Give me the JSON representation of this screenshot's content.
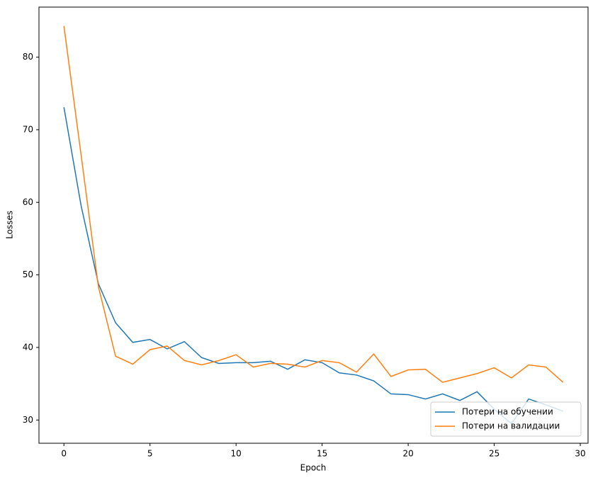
{
  "chart_data": {
    "type": "line",
    "x_label": "Epoch",
    "y_label": "Losses",
    "x": [
      0,
      1,
      2,
      3,
      4,
      5,
      6,
      7,
      8,
      9,
      10,
      11,
      12,
      13,
      14,
      15,
      16,
      17,
      18,
      19,
      20,
      21,
      22,
      23,
      24,
      25,
      26,
      27,
      28,
      29
    ],
    "series": [
      {
        "name": "Потери на обучении",
        "color": "#1f77b4",
        "values": [
          73.1,
          59.5,
          48.8,
          43.4,
          40.7,
          41.1,
          39.8,
          40.8,
          38.6,
          37.8,
          37.9,
          37.9,
          38.1,
          37.0,
          38.3,
          37.9,
          36.5,
          36.2,
          35.4,
          33.6,
          33.5,
          32.9,
          33.6,
          32.7,
          33.9,
          31.5,
          29.5,
          32.9,
          32.1,
          31.2
        ]
      },
      {
        "name": "Потери на валидации",
        "color": "#ff7f0e",
        "values": [
          84.3,
          66.5,
          48.4,
          38.8,
          37.7,
          39.7,
          40.2,
          38.2,
          37.6,
          38.2,
          39.0,
          37.3,
          37.8,
          37.7,
          37.3,
          38.2,
          37.9,
          36.6,
          39.1,
          36.0,
          36.9,
          37.0,
          35.2,
          35.8,
          36.4,
          37.2,
          35.8,
          37.6,
          37.3,
          35.2
        ]
      }
    ],
    "xlim": [
      -1.45,
      30.45
    ],
    "ylim": [
      26.8,
      86.9
    ],
    "xticks": [
      0,
      5,
      10,
      15,
      20,
      25,
      30
    ],
    "yticks": [
      30,
      40,
      50,
      60,
      70,
      80
    ],
    "legend": "lower right"
  }
}
